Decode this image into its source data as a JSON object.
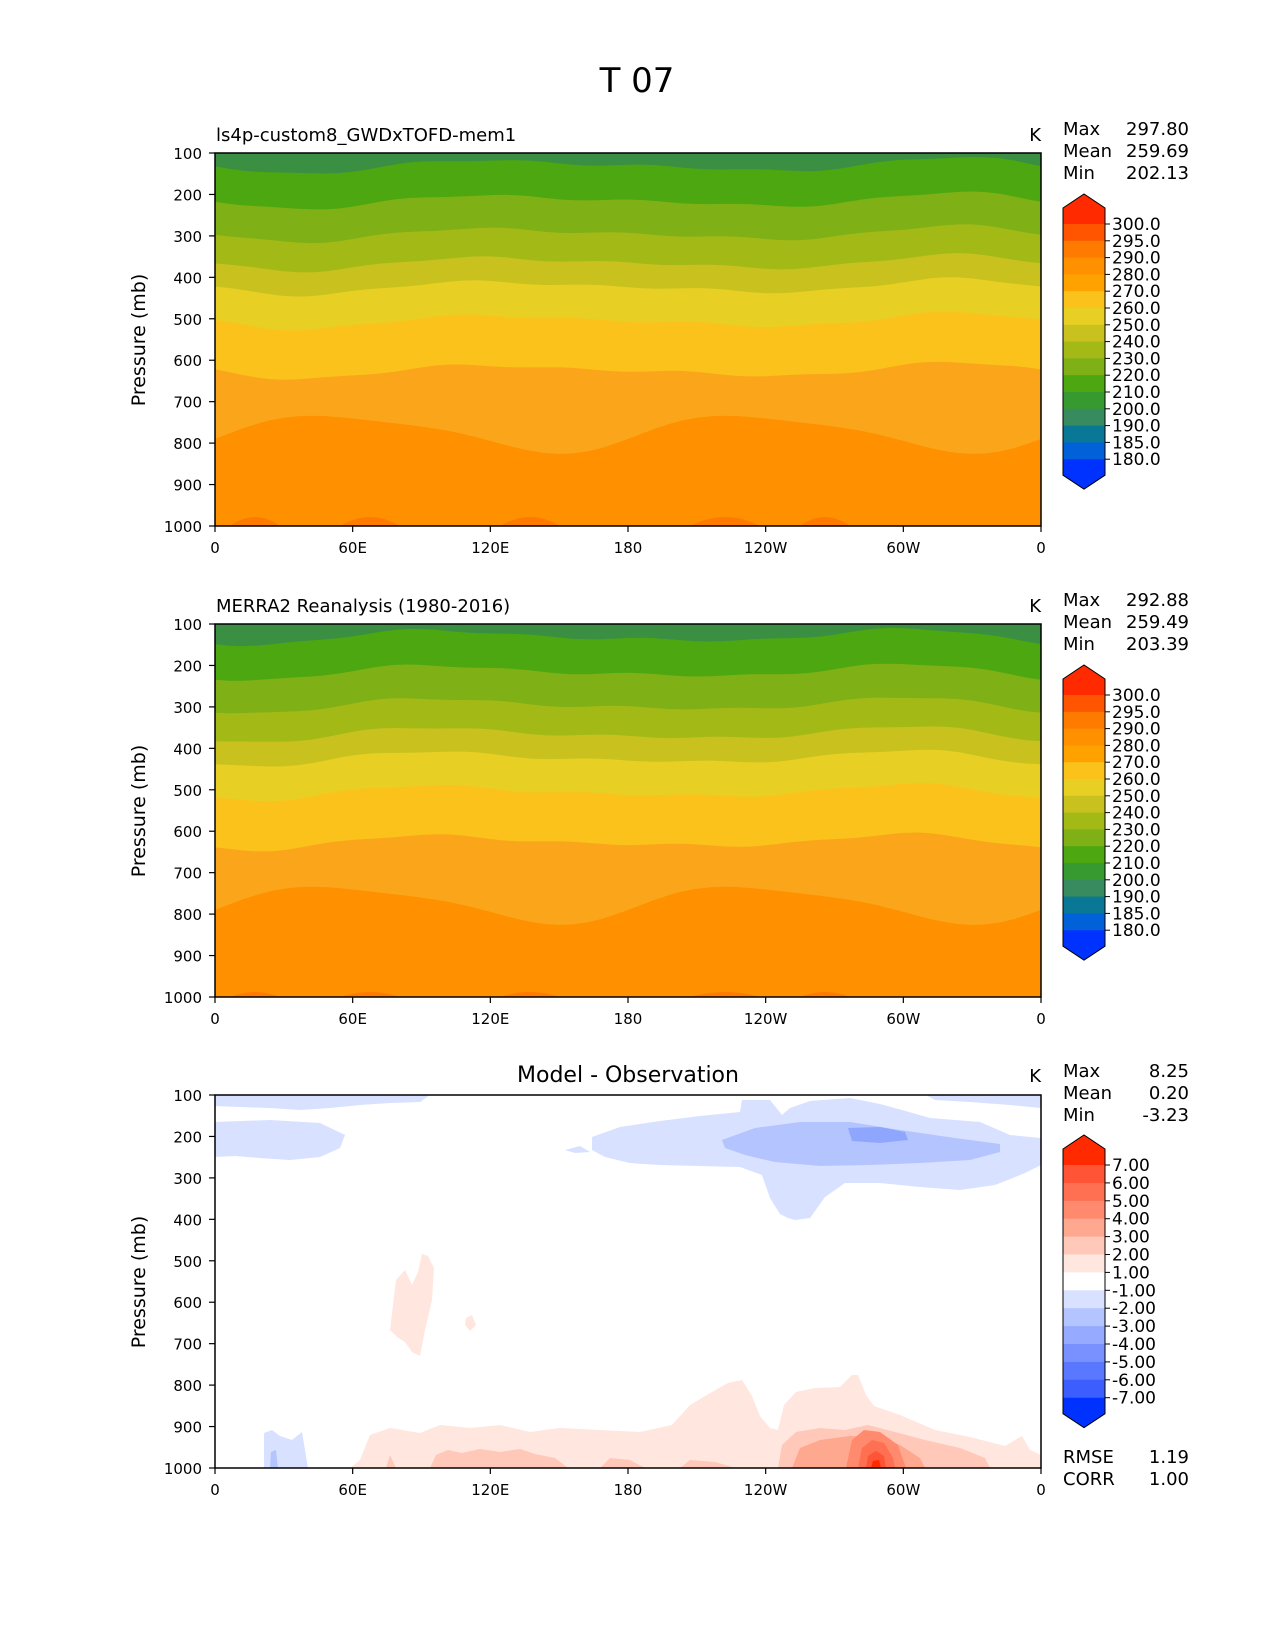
{
  "page": {
    "title": "T 07"
  },
  "chart_data": [
    {
      "type": "heatmap",
      "title": "ls4p-custom8_GWDxTOFD-mem1",
      "units": "K",
      "ylabel": "Pressure (mb)",
      "xlabel": "",
      "xticks": [
        "0",
        "60E",
        "120E",
        "180",
        "120W",
        "60W",
        "0"
      ],
      "yticks": [
        "100",
        "200",
        "300",
        "400",
        "500",
        "600",
        "700",
        "800",
        "900",
        "1000"
      ],
      "xlim": [
        0,
        360
      ],
      "ylim": [
        100,
        1000
      ],
      "stats": [
        {
          "label": "Max",
          "value": "297.80"
        },
        {
          "label": "Mean",
          "value": "259.69"
        },
        {
          "label": "Min",
          "value": "202.13"
        }
      ],
      "colorbar": {
        "labels": [
          "300.0",
          "295.0",
          "290.0",
          "280.0",
          "270.0",
          "260.0",
          "250.0",
          "240.0",
          "230.0",
          "220.0",
          "210.0",
          "200.0",
          "190.0",
          "185.0",
          "180.0"
        ],
        "colors": [
          "#ff2a00",
          "#ff5500",
          "#ff7b00",
          "#ff9000",
          "#ffa200",
          "#fcc21c",
          "#e8cf24",
          "#c9c11e",
          "#a3b916",
          "#7fb016",
          "#4ca710",
          "#379a30",
          "#378b5f",
          "#087896",
          "#0061d8",
          "#0032ff"
        ]
      },
      "bands": [
        {
          "level": "200",
          "color": "#3b8f43"
        },
        {
          "level": "210",
          "color": "#4ca710"
        },
        {
          "level": "220",
          "color": "#7fb016"
        },
        {
          "level": "230",
          "color": "#a3b916"
        },
        {
          "level": "240",
          "color": "#c9c11e"
        },
        {
          "level": "250",
          "color": "#e8cf24"
        },
        {
          "level": "260",
          "color": "#fcc21c"
        },
        {
          "level": "270",
          "color": "#fba61a"
        },
        {
          "level": "280",
          "color": "#ff9000"
        },
        {
          "level": "290",
          "color": "#ff7b00"
        }
      ]
    },
    {
      "type": "heatmap",
      "title": "MERRA2 Reanalysis (1980-2016)",
      "units": "K",
      "ylabel": "Pressure (mb)",
      "xlabel": "",
      "xticks": [
        "0",
        "60E",
        "120E",
        "180",
        "120W",
        "60W",
        "0"
      ],
      "yticks": [
        "100",
        "200",
        "300",
        "400",
        "500",
        "600",
        "700",
        "800",
        "900",
        "1000"
      ],
      "xlim": [
        0,
        360
      ],
      "ylim": [
        100,
        1000
      ],
      "stats": [
        {
          "label": "Max",
          "value": "292.88"
        },
        {
          "label": "Mean",
          "value": "259.49"
        },
        {
          "label": "Min",
          "value": "203.39"
        }
      ],
      "colorbar": {
        "labels": [
          "300.0",
          "295.0",
          "290.0",
          "280.0",
          "270.0",
          "260.0",
          "250.0",
          "240.0",
          "230.0",
          "220.0",
          "210.0",
          "200.0",
          "190.0",
          "185.0",
          "180.0"
        ],
        "colors": [
          "#ff2a00",
          "#ff5500",
          "#ff7b00",
          "#ff9000",
          "#ffa200",
          "#fcc21c",
          "#e8cf24",
          "#c9c11e",
          "#a3b916",
          "#7fb016",
          "#4ca710",
          "#379a30",
          "#378b5f",
          "#087896",
          "#0061d8",
          "#0032ff"
        ]
      },
      "bands": [
        {
          "level": "200",
          "color": "#3b8f43"
        },
        {
          "level": "210",
          "color": "#4ca710"
        },
        {
          "level": "220",
          "color": "#7fb016"
        },
        {
          "level": "230",
          "color": "#a3b916"
        },
        {
          "level": "240",
          "color": "#c9c11e"
        },
        {
          "level": "250",
          "color": "#e8cf24"
        },
        {
          "level": "260",
          "color": "#fcc21c"
        },
        {
          "level": "270",
          "color": "#fba61a"
        },
        {
          "level": "280",
          "color": "#ff9000"
        },
        {
          "level": "290",
          "color": "#ff7b00"
        }
      ]
    },
    {
      "type": "heatmap",
      "title": "Model - Observation",
      "units": "K",
      "ylabel": "Pressure (mb)",
      "xlabel": "",
      "xticks": [
        "0",
        "60E",
        "120E",
        "180",
        "120W",
        "60W",
        "0"
      ],
      "yticks": [
        "100",
        "200",
        "300",
        "400",
        "500",
        "600",
        "700",
        "800",
        "900",
        "1000"
      ],
      "xlim": [
        0,
        360
      ],
      "ylim": [
        100,
        1000
      ],
      "stats": [
        {
          "label": "Max",
          "value": "8.25"
        },
        {
          "label": "Mean",
          "value": "0.20"
        },
        {
          "label": "Min",
          "value": "-3.23"
        }
      ],
      "extra_stats": [
        {
          "label": "RMSE",
          "value": "1.19"
        },
        {
          "label": "CORR",
          "value": "1.00"
        }
      ],
      "colorbar": {
        "labels": [
          "7.00",
          "6.00",
          "5.00",
          "4.00",
          "3.00",
          "2.00",
          "1.00",
          "-1.00",
          "-2.00",
          "-3.00",
          "-4.00",
          "-5.00",
          "-6.00",
          "-7.00"
        ],
        "colors": [
          "#ff2a00",
          "#ff5435",
          "#ff6f52",
          "#ff8a6e",
          "#ffa890",
          "#ffc8b8",
          "#ffe6de",
          "#ffffff",
          "#d8e1ff",
          "#b4c4ff",
          "#96abff",
          "#7990ff",
          "#5977ff",
          "#3d5eff",
          "#0032ff"
        ]
      }
    }
  ]
}
